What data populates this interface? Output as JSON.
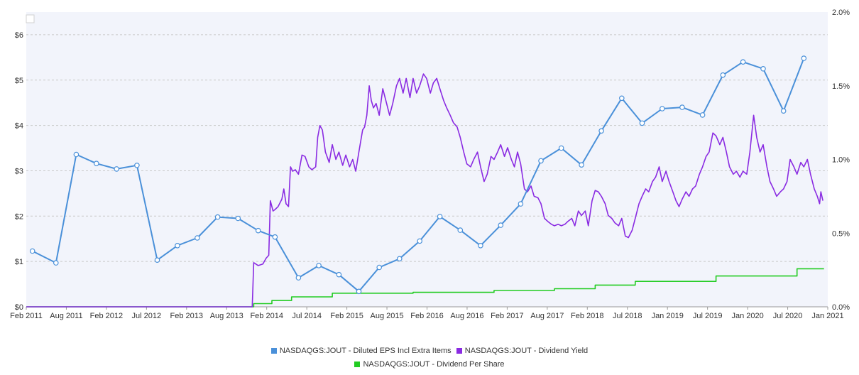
{
  "chart_data": {
    "type": "line",
    "title": "",
    "x_tick_labels": [
      "Feb 2011",
      "Aug 2011",
      "Feb 2012",
      "Jul 2012",
      "Feb 2013",
      "Aug 2013",
      "Feb 2014",
      "Jul 2014",
      "Feb 2015",
      "Aug 2015",
      "Feb 2016",
      "Aug 2016",
      "Feb 2017",
      "Aug 2017",
      "Feb 2018",
      "Jul 2018",
      "Jan 2019",
      "Jul 2019",
      "Jan 2020",
      "Jul 2020",
      "Jan 2021"
    ],
    "x_range": [
      "2011-02-01",
      "2021-01-01"
    ],
    "y_left": {
      "range": [
        0,
        6.5
      ],
      "tick_labels": [
        "$0",
        "$1",
        "$2",
        "$3",
        "$4",
        "$5",
        "$6"
      ],
      "tick_values": [
        0,
        1,
        2,
        3,
        4,
        5,
        6
      ]
    },
    "y_right": {
      "range": [
        0,
        2.0
      ],
      "tick_labels": [
        "0.0%",
        "0.5%",
        "1.0%",
        "1.5%",
        "2.0%"
      ],
      "tick_values": [
        0,
        0.5,
        1.0,
        1.5,
        2.0
      ]
    },
    "grid": true,
    "legend_position": "bottom-center",
    "colors": {
      "eps": "#4a90d9",
      "yield": "#8a2be2",
      "dps": "#22cc22",
      "plot_bg": "#f2f4fb",
      "grid": "#c8c8c8"
    },
    "series": [
      {
        "name": "NASDAQGS:JOUT - Diluted EPS Incl Extra Items",
        "axis": "left",
        "markers": true,
        "points": [
          [
            "2011-03-01",
            1.23
          ],
          [
            "2011-06-15",
            0.97
          ],
          [
            "2011-09-15",
            3.36
          ],
          [
            "2011-12-15",
            3.16
          ],
          [
            "2012-03-15",
            3.04
          ],
          [
            "2012-06-15",
            3.12
          ],
          [
            "2012-09-15",
            1.03
          ],
          [
            "2012-12-15",
            1.35
          ],
          [
            "2013-03-15",
            1.52
          ],
          [
            "2013-06-15",
            1.98
          ],
          [
            "2013-09-15",
            1.95
          ],
          [
            "2013-12-15",
            1.68
          ],
          [
            "2014-03-01",
            1.54
          ],
          [
            "2014-06-15",
            0.64
          ],
          [
            "2014-09-15",
            0.91
          ],
          [
            "2014-12-15",
            0.71
          ],
          [
            "2015-03-15",
            0.34
          ],
          [
            "2015-06-15",
            0.87
          ],
          [
            "2015-09-15",
            1.06
          ],
          [
            "2015-12-15",
            1.45
          ],
          [
            "2016-03-15",
            1.99
          ],
          [
            "2016-06-15",
            1.69
          ],
          [
            "2016-09-15",
            1.35
          ],
          [
            "2016-12-15",
            1.8
          ],
          [
            "2017-03-15",
            2.27
          ],
          [
            "2017-06-15",
            3.22
          ],
          [
            "2017-09-15",
            3.5
          ],
          [
            "2017-12-15",
            3.13
          ],
          [
            "2018-03-15",
            3.88
          ],
          [
            "2018-06-15",
            4.6
          ],
          [
            "2018-09-15",
            4.05
          ],
          [
            "2018-12-15",
            4.37
          ],
          [
            "2019-03-15",
            4.4
          ],
          [
            "2019-06-15",
            4.23
          ],
          [
            "2019-09-15",
            5.11
          ],
          [
            "2019-12-15",
            5.4
          ],
          [
            "2020-03-15",
            5.25
          ],
          [
            "2020-06-15",
            4.32
          ],
          [
            "2020-09-15",
            5.48
          ]
        ]
      },
      {
        "name": "NASDAQGS:JOUT - Dividend Yield",
        "axis": "right",
        "markers": false,
        "points": [
          [
            "2011-02-01",
            0.0
          ],
          [
            "2013-11-18",
            0.0
          ],
          [
            "2013-11-25",
            0.3
          ],
          [
            "2013-12-15",
            0.28
          ],
          [
            "2014-01-05",
            0.29
          ],
          [
            "2014-01-20",
            0.33
          ],
          [
            "2014-02-01",
            0.35
          ],
          [
            "2014-02-08",
            0.72
          ],
          [
            "2014-02-20",
            0.65
          ],
          [
            "2014-03-01",
            0.66
          ],
          [
            "2014-03-15",
            0.68
          ],
          [
            "2014-04-01",
            0.73
          ],
          [
            "2014-04-10",
            0.8
          ],
          [
            "2014-04-20",
            0.7
          ],
          [
            "2014-05-01",
            0.68
          ],
          [
            "2014-05-10",
            0.95
          ],
          [
            "2014-05-20",
            0.92
          ],
          [
            "2014-06-01",
            0.93
          ],
          [
            "2014-06-15",
            0.9
          ],
          [
            "2014-07-01",
            1.03
          ],
          [
            "2014-07-15",
            1.02
          ],
          [
            "2014-08-01",
            0.95
          ],
          [
            "2014-08-15",
            0.93
          ],
          [
            "2014-09-01",
            0.95
          ],
          [
            "2014-09-10",
            1.15
          ],
          [
            "2014-09-20",
            1.23
          ],
          [
            "2014-10-01",
            1.2
          ],
          [
            "2014-10-15",
            1.05
          ],
          [
            "2014-11-01",
            0.98
          ],
          [
            "2014-11-15",
            1.1
          ],
          [
            "2014-12-01",
            1.0
          ],
          [
            "2014-12-15",
            1.05
          ],
          [
            "2015-01-01",
            0.96
          ],
          [
            "2015-01-15",
            1.03
          ],
          [
            "2015-02-01",
            0.95
          ],
          [
            "2015-02-15",
            1.0
          ],
          [
            "2015-03-01",
            0.92
          ],
          [
            "2015-03-15",
            1.05
          ],
          [
            "2015-04-01",
            1.2
          ],
          [
            "2015-04-10",
            1.22
          ],
          [
            "2015-04-20",
            1.3
          ],
          [
            "2015-05-01",
            1.5
          ],
          [
            "2015-05-10",
            1.4
          ],
          [
            "2015-05-20",
            1.35
          ],
          [
            "2015-06-01",
            1.38
          ],
          [
            "2015-06-15",
            1.3
          ],
          [
            "2015-07-01",
            1.48
          ],
          [
            "2015-07-15",
            1.4
          ],
          [
            "2015-08-01",
            1.3
          ],
          [
            "2015-08-15",
            1.38
          ],
          [
            "2015-09-01",
            1.5
          ],
          [
            "2015-09-15",
            1.55
          ],
          [
            "2015-10-01",
            1.45
          ],
          [
            "2015-10-15",
            1.55
          ],
          [
            "2015-11-01",
            1.42
          ],
          [
            "2015-11-15",
            1.55
          ],
          [
            "2015-12-01",
            1.45
          ],
          [
            "2015-12-15",
            1.5
          ],
          [
            "2016-01-01",
            1.58
          ],
          [
            "2016-01-15",
            1.55
          ],
          [
            "2016-02-01",
            1.45
          ],
          [
            "2016-02-15",
            1.52
          ],
          [
            "2016-03-01",
            1.55
          ],
          [
            "2016-03-15",
            1.48
          ],
          [
            "2016-04-01",
            1.4
          ],
          [
            "2016-04-15",
            1.35
          ],
          [
            "2016-05-01",
            1.3
          ],
          [
            "2016-05-15",
            1.25
          ],
          [
            "2016-06-01",
            1.22
          ],
          [
            "2016-06-15",
            1.15
          ],
          [
            "2016-07-01",
            1.05
          ],
          [
            "2016-07-15",
            0.97
          ],
          [
            "2016-08-01",
            0.95
          ],
          [
            "2016-08-15",
            1.0
          ],
          [
            "2016-09-01",
            1.05
          ],
          [
            "2016-09-15",
            0.95
          ],
          [
            "2016-10-01",
            0.85
          ],
          [
            "2016-10-15",
            0.9
          ],
          [
            "2016-11-01",
            1.02
          ],
          [
            "2016-11-15",
            1.0
          ],
          [
            "2016-12-01",
            1.05
          ],
          [
            "2016-12-15",
            1.1
          ],
          [
            "2017-01-01",
            1.02
          ],
          [
            "2017-01-15",
            1.08
          ],
          [
            "2017-02-01",
            1.0
          ],
          [
            "2017-02-15",
            0.95
          ],
          [
            "2017-03-01",
            1.05
          ],
          [
            "2017-03-15",
            0.97
          ],
          [
            "2017-04-01",
            0.8
          ],
          [
            "2017-04-15",
            0.78
          ],
          [
            "2017-05-01",
            0.82
          ],
          [
            "2017-05-15",
            0.75
          ],
          [
            "2017-06-01",
            0.74
          ],
          [
            "2017-06-15",
            0.7
          ],
          [
            "2017-07-01",
            0.6
          ],
          [
            "2017-07-15",
            0.58
          ],
          [
            "2017-08-01",
            0.56
          ],
          [
            "2017-08-15",
            0.55
          ],
          [
            "2017-09-01",
            0.56
          ],
          [
            "2017-09-15",
            0.55
          ],
          [
            "2017-10-01",
            0.56
          ],
          [
            "2017-10-15",
            0.58
          ],
          [
            "2017-11-01",
            0.6
          ],
          [
            "2017-11-15",
            0.55
          ],
          [
            "2017-12-01",
            0.65
          ],
          [
            "2017-12-15",
            0.62
          ],
          [
            "2018-01-01",
            0.65
          ],
          [
            "2018-01-15",
            0.55
          ],
          [
            "2018-02-01",
            0.72
          ],
          [
            "2018-02-15",
            0.79
          ],
          [
            "2018-03-01",
            0.78
          ],
          [
            "2018-03-15",
            0.75
          ],
          [
            "2018-04-01",
            0.7
          ],
          [
            "2018-04-15",
            0.62
          ],
          [
            "2018-05-01",
            0.6
          ],
          [
            "2018-05-15",
            0.57
          ],
          [
            "2018-06-01",
            0.55
          ],
          [
            "2018-06-15",
            0.6
          ],
          [
            "2018-07-01",
            0.48
          ],
          [
            "2018-07-15",
            0.47
          ],
          [
            "2018-08-01",
            0.52
          ],
          [
            "2018-08-15",
            0.6
          ],
          [
            "2018-09-01",
            0.7
          ],
          [
            "2018-09-15",
            0.75
          ],
          [
            "2018-10-01",
            0.8
          ],
          [
            "2018-10-15",
            0.78
          ],
          [
            "2018-11-01",
            0.85
          ],
          [
            "2018-11-15",
            0.88
          ],
          [
            "2018-12-01",
            0.95
          ],
          [
            "2018-12-15",
            0.85
          ],
          [
            "2019-01-01",
            0.92
          ],
          [
            "2019-01-15",
            0.85
          ],
          [
            "2019-02-01",
            0.78
          ],
          [
            "2019-02-15",
            0.72
          ],
          [
            "2019-03-01",
            0.68
          ],
          [
            "2019-03-15",
            0.73
          ],
          [
            "2019-04-01",
            0.78
          ],
          [
            "2019-04-15",
            0.75
          ],
          [
            "2019-05-01",
            0.8
          ],
          [
            "2019-05-15",
            0.82
          ],
          [
            "2019-06-01",
            0.9
          ],
          [
            "2019-06-15",
            0.95
          ],
          [
            "2019-07-01",
            1.02
          ],
          [
            "2019-07-15",
            1.05
          ],
          [
            "2019-08-01",
            1.18
          ],
          [
            "2019-08-15",
            1.16
          ],
          [
            "2019-09-01",
            1.1
          ],
          [
            "2019-09-15",
            1.15
          ],
          [
            "2019-10-01",
            1.05
          ],
          [
            "2019-10-15",
            0.95
          ],
          [
            "2019-11-01",
            0.9
          ],
          [
            "2019-11-15",
            0.92
          ],
          [
            "2019-12-01",
            0.88
          ],
          [
            "2019-12-15",
            0.92
          ],
          [
            "2020-01-01",
            0.9
          ],
          [
            "2020-01-15",
            1.05
          ],
          [
            "2020-02-01",
            1.3
          ],
          [
            "2020-02-15",
            1.15
          ],
          [
            "2020-03-01",
            1.05
          ],
          [
            "2020-03-15",
            1.1
          ],
          [
            "2020-04-01",
            0.95
          ],
          [
            "2020-04-15",
            0.85
          ],
          [
            "2020-05-01",
            0.8
          ],
          [
            "2020-05-15",
            0.75
          ],
          [
            "2020-06-01",
            0.78
          ],
          [
            "2020-06-15",
            0.8
          ],
          [
            "2020-07-01",
            0.85
          ],
          [
            "2020-07-15",
            1.0
          ],
          [
            "2020-08-01",
            0.95
          ],
          [
            "2020-08-15",
            0.9
          ],
          [
            "2020-09-01",
            0.98
          ],
          [
            "2020-09-15",
            0.95
          ],
          [
            "2020-10-01",
            1.0
          ],
          [
            "2020-10-15",
            0.9
          ],
          [
            "2020-11-01",
            0.8
          ],
          [
            "2020-11-15",
            0.75
          ],
          [
            "2020-11-25",
            0.7
          ],
          [
            "2020-12-01",
            0.78
          ],
          [
            "2020-12-10",
            0.72
          ]
        ]
      },
      {
        "name": "NASDAQGS:JOUT - Dividend Per Share",
        "axis": "left",
        "markers": false,
        "step": true,
        "points": [
          [
            "2011-02-01",
            0.0
          ],
          [
            "2013-11-25",
            0.0
          ],
          [
            "2013-11-25",
            0.07
          ],
          [
            "2014-02-15",
            0.07
          ],
          [
            "2014-02-15",
            0.14
          ],
          [
            "2014-05-15",
            0.14
          ],
          [
            "2014-05-15",
            0.22
          ],
          [
            "2014-11-15",
            0.22
          ],
          [
            "2014-11-15",
            0.3
          ],
          [
            "2015-11-15",
            0.3
          ],
          [
            "2015-11-15",
            0.32
          ],
          [
            "2016-11-15",
            0.32
          ],
          [
            "2016-11-15",
            0.36
          ],
          [
            "2017-08-15",
            0.36
          ],
          [
            "2017-08-15",
            0.4
          ],
          [
            "2018-02-15",
            0.4
          ],
          [
            "2018-02-15",
            0.48
          ],
          [
            "2018-08-15",
            0.48
          ],
          [
            "2018-08-15",
            0.56
          ],
          [
            "2019-08-15",
            0.56
          ],
          [
            "2019-08-15",
            0.68
          ],
          [
            "2020-08-15",
            0.68
          ],
          [
            "2020-08-15",
            0.84
          ],
          [
            "2020-12-15",
            0.84
          ]
        ]
      }
    ]
  }
}
